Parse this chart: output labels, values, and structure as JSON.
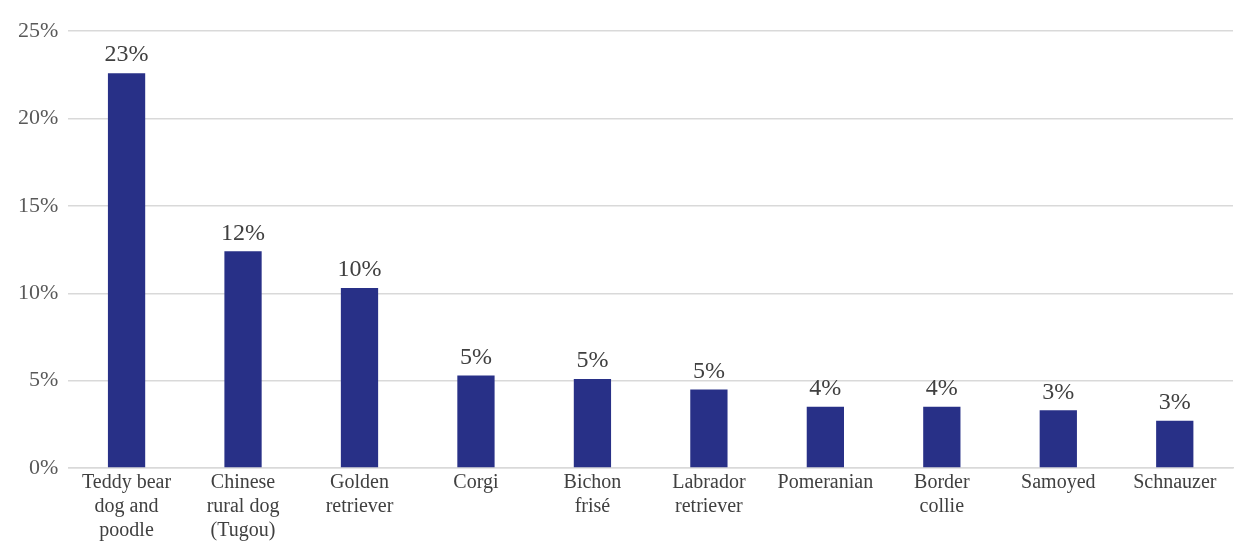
{
  "chart_data": {
    "type": "bar",
    "categories": [
      "Teddy bear dog and poodle",
      "Chinese rural dog (Tugou)",
      "Golden retriever",
      "Corgi",
      "Bichon frisé",
      "Labrador retriever",
      "Pomeranian",
      "Border collie",
      "Samoyed",
      "Schnauzer"
    ],
    "values": [
      22.6,
      12.4,
      10.3,
      5.3,
      5.1,
      4.5,
      3.5,
      3.5,
      3.3,
      2.7
    ],
    "value_labels": [
      "23%",
      "12%",
      "10%",
      "5%",
      "5%",
      "5%",
      "4%",
      "4%",
      "3%",
      "3%"
    ],
    "color": "#283087",
    "ylim": [
      0,
      25
    ],
    "yticks": [
      {
        "value": 0,
        "label": "0%"
      },
      {
        "value": 5,
        "label": "5%"
      },
      {
        "value": 10,
        "label": "10%"
      },
      {
        "value": 15,
        "label": "15%"
      },
      {
        "value": 20,
        "label": "20%"
      },
      {
        "value": 25,
        "label": "25%"
      }
    ],
    "grid": "y",
    "legend": false
  }
}
